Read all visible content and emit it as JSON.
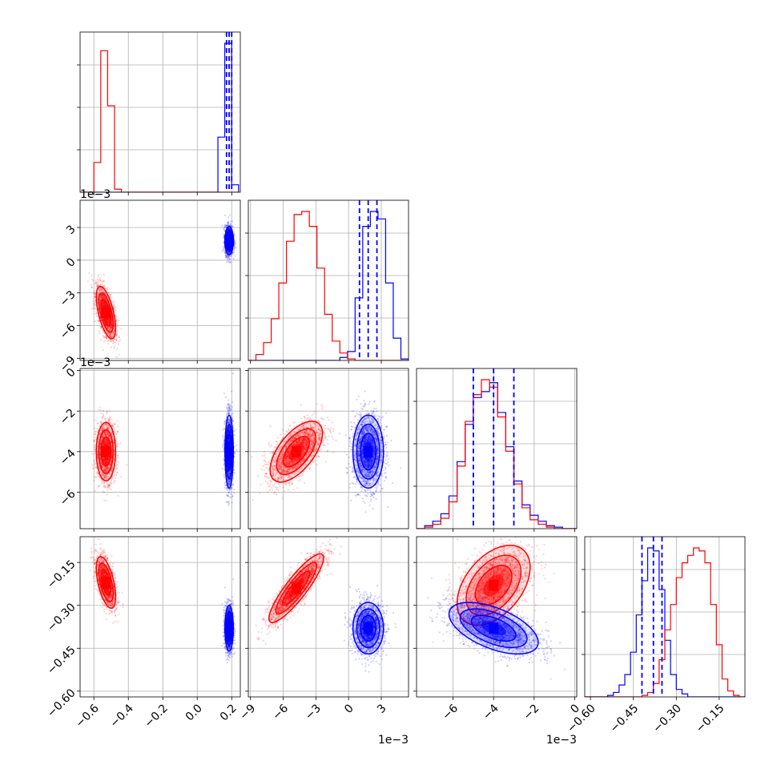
{
  "chart_data": {
    "type": "corner",
    "grid": true,
    "colors": {
      "series_a": "#ff0000",
      "series_b": "#0000ff"
    },
    "offset_labels": [
      {
        "panel": "row-1",
        "text": "1e−3"
      },
      {
        "panel": "row-2",
        "text": "1e−3"
      },
      {
        "panel": "col-1",
        "text": "1e−3"
      },
      {
        "panel": "col-2",
        "text": "1e−3"
      }
    ],
    "params": [
      {
        "lim": [
          -0.68,
          0.25
        ],
        "ticks": [
          -0.6,
          -0.4,
          -0.2,
          0.0,
          0.2
        ],
        "tick_labels": [
          "−0.6",
          "−0.4",
          "−0.2",
          "0.0",
          "0.2"
        ]
      },
      {
        "lim": [
          -9.2,
          5.5
        ],
        "ticks": [
          -9,
          -6,
          -3,
          0,
          3
        ],
        "tick_labels": [
          "−9",
          "−6",
          "−3",
          "0",
          "3"
        ]
      },
      {
        "lim": [
          -7.8,
          0.1
        ],
        "ticks": [
          -6,
          -4,
          -2,
          0
        ],
        "tick_labels": [
          "−6",
          "−4",
          "−2",
          "0"
        ]
      },
      {
        "lim": [
          -0.62,
          -0.06
        ],
        "ticks": [
          -0.6,
          -0.45,
          -0.3,
          -0.15
        ],
        "tick_labels": [
          "−0.60",
          "−0.45",
          "−0.30",
          "−0.15"
        ]
      }
    ],
    "reference_lines": [
      {
        "param": 0,
        "values": [
          0.17,
          0.185,
          0.2
        ]
      },
      {
        "param": 1,
        "values": [
          1.0,
          1.8,
          2.6
        ]
      },
      {
        "param": 2,
        "values": [
          -5.0,
          -4.0,
          -3.0
        ]
      },
      {
        "param": 3,
        "values": [
          -0.42,
          -0.38,
          -0.35
        ]
      }
    ],
    "diagonals": [
      {
        "param": 0,
        "edges": [
          -0.68,
          -0.64,
          -0.6,
          -0.56,
          -0.52,
          -0.48,
          -0.44,
          -0.4,
          -0.36,
          -0.32,
          -0.28,
          -0.24,
          -0.2,
          -0.16,
          -0.12,
          -0.08,
          -0.04,
          0.0,
          0.04,
          0.08,
          0.12,
          0.16,
          0.2,
          0.24
        ],
        "series_a": [
          0,
          0,
          0.2,
          0.95,
          0.58,
          0.02,
          0,
          0,
          0,
          0,
          0,
          0,
          0,
          0,
          0,
          0,
          0,
          0,
          0,
          0,
          0,
          0,
          0
        ],
        "series_b": [
          0,
          0,
          0,
          0,
          0,
          0,
          0,
          0,
          0,
          0,
          0,
          0,
          0,
          0,
          0,
          0,
          0,
          0,
          0,
          0,
          0.37,
          1.0,
          0.05
        ]
      },
      {
        "param": 1,
        "edges": [
          -9.2,
          -8.5,
          -7.8,
          -7.1,
          -6.4,
          -5.7,
          -5.0,
          -4.3,
          -3.6,
          -2.9,
          -2.2,
          -1.5,
          -0.8,
          -0.1,
          0.6,
          1.3,
          2.0,
          2.7,
          3.4,
          4.1,
          4.8,
          5.5
        ],
        "series_a": [
          0,
          0.04,
          0.12,
          0.28,
          0.52,
          0.8,
          0.98,
          1.0,
          0.9,
          0.62,
          0.31,
          0.13,
          0.05,
          0.01,
          0,
          0,
          0,
          0,
          0,
          0,
          0
        ],
        "series_b": [
          0,
          0,
          0,
          0,
          0,
          0,
          0,
          0,
          0,
          0,
          0,
          0,
          0.02,
          0.06,
          0.42,
          0.9,
          1.0,
          0.95,
          0.52,
          0.15,
          0.01
        ]
      },
      {
        "param": 2,
        "edges": [
          -7.8,
          -7.4,
          -7.0,
          -6.6,
          -6.2,
          -5.8,
          -5.4,
          -5.0,
          -4.6,
          -4.2,
          -3.8,
          -3.4,
          -3.0,
          -2.6,
          -2.2,
          -1.8,
          -1.4,
          -1.0,
          -0.6,
          -0.2,
          0.1
        ],
        "series_a": [
          0,
          0.01,
          0.03,
          0.07,
          0.18,
          0.42,
          0.72,
          0.9,
          1.0,
          0.95,
          0.75,
          0.52,
          0.3,
          0.14,
          0.06,
          0.03,
          0.01,
          0,
          0,
          0
        ],
        "series_b": [
          0,
          0.02,
          0.05,
          0.1,
          0.22,
          0.45,
          0.7,
          0.88,
          0.92,
          0.98,
          0.78,
          0.55,
          0.32,
          0.16,
          0.09,
          0.05,
          0.02,
          0.01,
          0,
          0
        ]
      },
      {
        "param": 3,
        "edges": [
          -0.62,
          -0.6,
          -0.58,
          -0.56,
          -0.54,
          -0.52,
          -0.5,
          -0.48,
          -0.46,
          -0.44,
          -0.42,
          -0.4,
          -0.38,
          -0.36,
          -0.34,
          -0.32,
          -0.3,
          -0.28,
          -0.26,
          -0.24,
          -0.22,
          -0.2,
          -0.18,
          -0.16,
          -0.14,
          -0.12,
          -0.1,
          -0.08,
          -0.06
        ],
        "series_a": [
          0,
          0,
          0,
          0,
          0,
          0,
          0,
          0,
          0,
          0,
          0.01,
          0.03,
          0.09,
          0.25,
          0.45,
          0.62,
          0.8,
          0.9,
          0.95,
          1.0,
          0.98,
          0.9,
          0.62,
          0.35,
          0.12,
          0.04,
          0.01,
          0
        ],
        "series_b": [
          0,
          0,
          0,
          0,
          0.01,
          0.03,
          0.08,
          0.15,
          0.3,
          0.55,
          0.78,
          1.0,
          0.98,
          0.72,
          0.38,
          0.15,
          0.05,
          0.02,
          0,
          0,
          0,
          0,
          0,
          0,
          0,
          0,
          0,
          0
        ]
      }
    ],
    "pairs": [
      {
        "row": 1,
        "col": 0,
        "series_a": {
          "mean": [
            -0.53,
            -4.8
          ],
          "sd": [
            0.028,
            1.2
          ],
          "rho": -0.6,
          "n": 1500
        },
        "series_b": {
          "mean": [
            0.185,
            1.8
          ],
          "sd": [
            0.012,
            0.65
          ],
          "rho": 0.0,
          "n": 1500
        }
      },
      {
        "row": 2,
        "col": 0,
        "series_a": {
          "mean": [
            -0.53,
            -4.0
          ],
          "sd": [
            0.028,
            0.72
          ],
          "rho": 0.0,
          "n": 1500
        },
        "series_b": {
          "mean": [
            0.185,
            -4.0
          ],
          "sd": [
            0.012,
            0.9
          ],
          "rho": 0.0,
          "n": 1500
        }
      },
      {
        "row": 2,
        "col": 1,
        "series_a": {
          "mean": [
            -4.8,
            -4.0
          ],
          "sd": [
            1.2,
            0.75
          ],
          "rho": 0.6,
          "n": 1800
        },
        "series_b": {
          "mean": [
            1.8,
            -4.0
          ],
          "sd": [
            0.7,
            0.9
          ],
          "rho": 0.0,
          "n": 1800
        }
      },
      {
        "row": 3,
        "col": 0,
        "series_a": {
          "mean": [
            -0.53,
            -0.22
          ],
          "sd": [
            0.028,
            0.045
          ],
          "rho": -0.55,
          "n": 1500
        },
        "series_b": {
          "mean": [
            0.185,
            -0.38
          ],
          "sd": [
            0.012,
            0.04
          ],
          "rho": 0.0,
          "n": 1500
        }
      },
      {
        "row": 3,
        "col": 1,
        "series_a": {
          "mean": [
            -4.8,
            -0.24
          ],
          "sd": [
            1.25,
            0.06
          ],
          "rho": 0.88,
          "n": 1800
        },
        "series_b": {
          "mean": [
            1.8,
            -0.38
          ],
          "sd": [
            0.7,
            0.045
          ],
          "rho": 0.0,
          "n": 1800
        }
      },
      {
        "row": 3,
        "col": 2,
        "series_a": {
          "mean": [
            -4.0,
            -0.23
          ],
          "sd": [
            0.9,
            0.07
          ],
          "rho": 0.45,
          "n": 1800
        },
        "series_b": {
          "mean": [
            -4.0,
            -0.38
          ],
          "sd": [
            1.1,
            0.045
          ],
          "rho": -0.55,
          "n": 1800
        }
      }
    ]
  }
}
